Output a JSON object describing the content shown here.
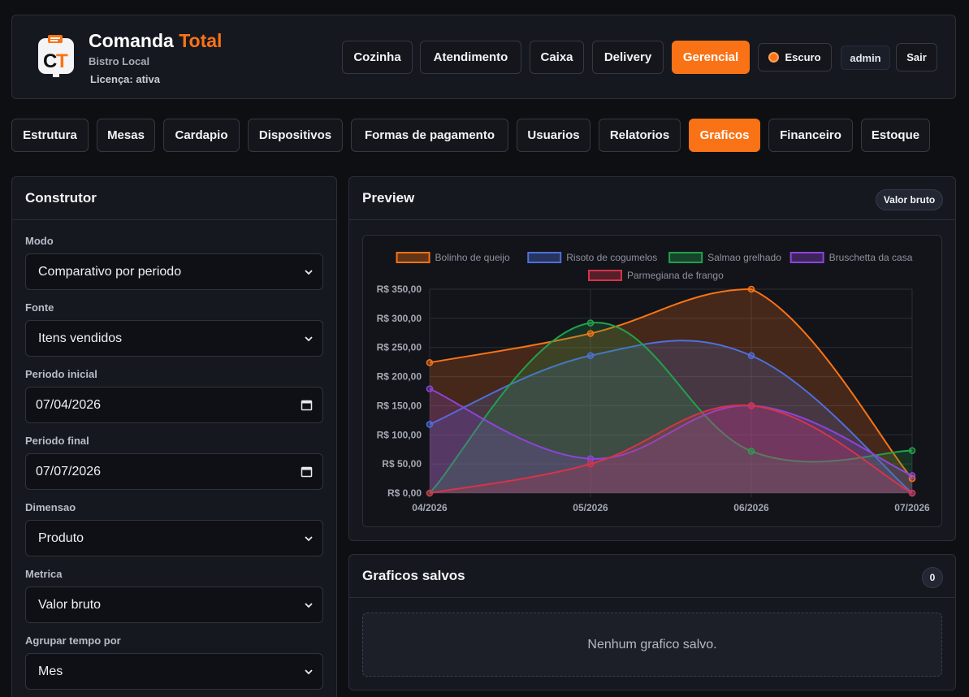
{
  "brand": {
    "title_main": "Comanda",
    "title_accent": "Total",
    "subtitle": "Bistro Local",
    "license": "Licença: ativa",
    "logo_text": "CT"
  },
  "top_nav": {
    "items": [
      {
        "label": "Cozinha",
        "active": false
      },
      {
        "label": "Atendimento",
        "active": false
      },
      {
        "label": "Caixa",
        "active": false
      },
      {
        "label": "Delivery",
        "active": false
      },
      {
        "label": "Gerencial",
        "active": true
      }
    ],
    "theme_label": "Escuro",
    "user": "admin",
    "logout": "Sair"
  },
  "sub_nav": {
    "items": [
      {
        "label": "Estrutura",
        "active": false
      },
      {
        "label": "Mesas",
        "active": false
      },
      {
        "label": "Cardapio",
        "active": false
      },
      {
        "label": "Dispositivos",
        "active": false
      },
      {
        "label": "Formas de pagamento",
        "active": false
      },
      {
        "label": "Usuarios",
        "active": false
      },
      {
        "label": "Relatorios",
        "active": false
      },
      {
        "label": "Graficos",
        "active": true
      },
      {
        "label": "Financeiro",
        "active": false
      },
      {
        "label": "Estoque",
        "active": false
      }
    ]
  },
  "builder": {
    "title": "Construtor",
    "fields": [
      {
        "label": "Modo",
        "value": "Comparativo por periodo",
        "type": "select"
      },
      {
        "label": "Fonte",
        "value": "Itens vendidos",
        "type": "select"
      },
      {
        "label": "Periodo inicial",
        "value": "07/04/2026",
        "type": "date"
      },
      {
        "label": "Periodo final",
        "value": "07/07/2026",
        "type": "date"
      },
      {
        "label": "Dimensao",
        "value": "Produto",
        "type": "select"
      },
      {
        "label": "Metrica",
        "value": "Valor bruto",
        "type": "select"
      },
      {
        "label": "Agrupar tempo por",
        "value": "Mes",
        "type": "select"
      }
    ]
  },
  "preview": {
    "title": "Preview",
    "badge": "Valor bruto"
  },
  "saved": {
    "title": "Graficos salvos",
    "count": "0",
    "empty_text": "Nenhum grafico salvo."
  },
  "colors": {
    "accent": "#f97316",
    "background": "#0e0f13",
    "panel": "#16181f"
  },
  "chart_data": {
    "type": "area",
    "x": [
      "04/2026",
      "05/2026",
      "06/2026",
      "07/2026"
    ],
    "ylim": [
      0,
      350
    ],
    "yticks": [
      "R$ 0,00",
      "R$ 50,00",
      "R$ 100,00",
      "R$ 150,00",
      "R$ 200,00",
      "R$ 250,00",
      "R$ 300,00",
      "R$ 350,00"
    ],
    "grid": true,
    "legend_position": "top",
    "series": [
      {
        "name": "Bolinho de queijo",
        "color": "#f97316",
        "values": [
          224,
          274,
          350,
          25
        ]
      },
      {
        "name": "Risoto de cogumelos",
        "color": "#4f6fdc",
        "values": [
          118,
          236,
          236,
          0
        ]
      },
      {
        "name": "Salmao grelhado",
        "color": "#22a04b",
        "values": [
          0,
          292,
          72,
          73
        ]
      },
      {
        "name": "Bruschetta da casa",
        "color": "#8e44d9",
        "values": [
          179,
          59,
          150,
          30
        ]
      },
      {
        "name": "Parmegiana de frango",
        "color": "#d6334a",
        "values": [
          0,
          50,
          150,
          0
        ]
      }
    ]
  }
}
